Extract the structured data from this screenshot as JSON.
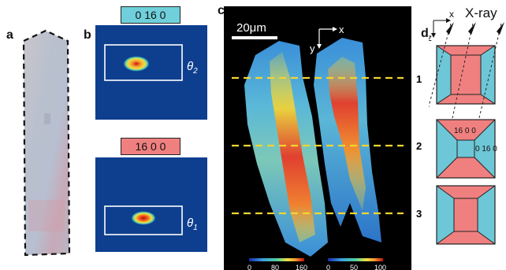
{
  "panels": {
    "a": {
      "letter": "a"
    },
    "b": {
      "letter": "b",
      "top": {
        "tag": "0 16 0",
        "tag_color": "#6fd0dc",
        "theta_symbol": "θ",
        "theta_sub": "2"
      },
      "bottom": {
        "tag": "16 0 0",
        "tag_color": "#f08080",
        "theta_symbol": "θ",
        "theta_sub": "1"
      }
    },
    "c": {
      "letter": "c",
      "scalebar": "20μm",
      "axis_x": "x",
      "axis_y": "y",
      "lines": [
        "1",
        "2",
        "3"
      ],
      "colorbar_left": [
        "0",
        "80",
        "160"
      ],
      "colorbar_right": [
        "0",
        "50",
        "100"
      ]
    },
    "d": {
      "letter": "d",
      "xray": "X-ray",
      "axis_x": "x",
      "axis_z": "z",
      "label_a": "16 0 0",
      "label_b": "0 16 0"
    }
  },
  "colors": {
    "detector_bg": "#0e3f8f",
    "cyan": "#6dc7d6",
    "pink": "#f08080",
    "map_bg": "#000000",
    "dashed_line": "#f2d531"
  }
}
